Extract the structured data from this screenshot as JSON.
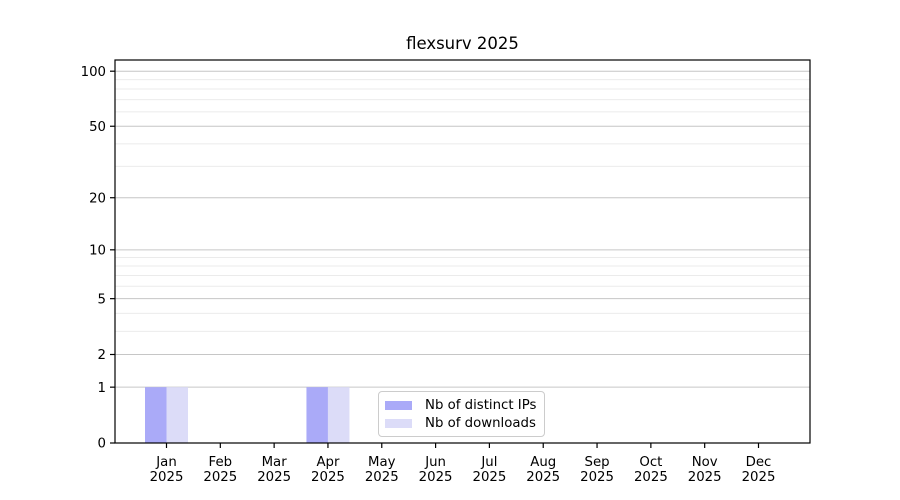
{
  "chart_data": {
    "type": "bar",
    "title": "flexsurv 2025",
    "categories": [
      "Jan 2025",
      "Feb 2025",
      "Mar 2025",
      "Apr 2025",
      "May 2025",
      "Jun 2025",
      "Jul 2025",
      "Aug 2025",
      "Sep 2025",
      "Oct 2025",
      "Nov 2025",
      "Dec 2025"
    ],
    "x_tick_months": [
      "Jan",
      "Feb",
      "Mar",
      "Apr",
      "May",
      "Jun",
      "Jul",
      "Aug",
      "Sep",
      "Oct",
      "Nov",
      "Dec"
    ],
    "x_tick_year": "2025",
    "series": [
      {
        "name": "Nb of distinct IPs",
        "color": "#aaaaf8",
        "values": [
          1,
          0,
          0,
          1,
          0,
          0,
          0,
          0,
          0,
          0,
          0,
          0
        ]
      },
      {
        "name": "Nb of downloads",
        "color": "#dcdcf8",
        "values": [
          1,
          0,
          0,
          1,
          0,
          0,
          0,
          0,
          0,
          0,
          0,
          0
        ]
      }
    ],
    "yticks": [
      0,
      1,
      2,
      5,
      10,
      20,
      50,
      100
    ],
    "minor_gridlines": [
      3,
      4,
      6,
      7,
      8,
      9,
      30,
      40,
      60,
      70,
      80,
      90
    ],
    "yscale": "log1p",
    "ylim": [
      0,
      115
    ],
    "xlabel": "",
    "ylabel": "",
    "grid": true,
    "legend_position": "inside-bottom-center"
  },
  "colors": {
    "background": "#ffffff",
    "axis": "#000000",
    "major_grid": "#c6c6c6",
    "minor_grid": "#ebebeb",
    "legend_border": "#cccccc"
  }
}
